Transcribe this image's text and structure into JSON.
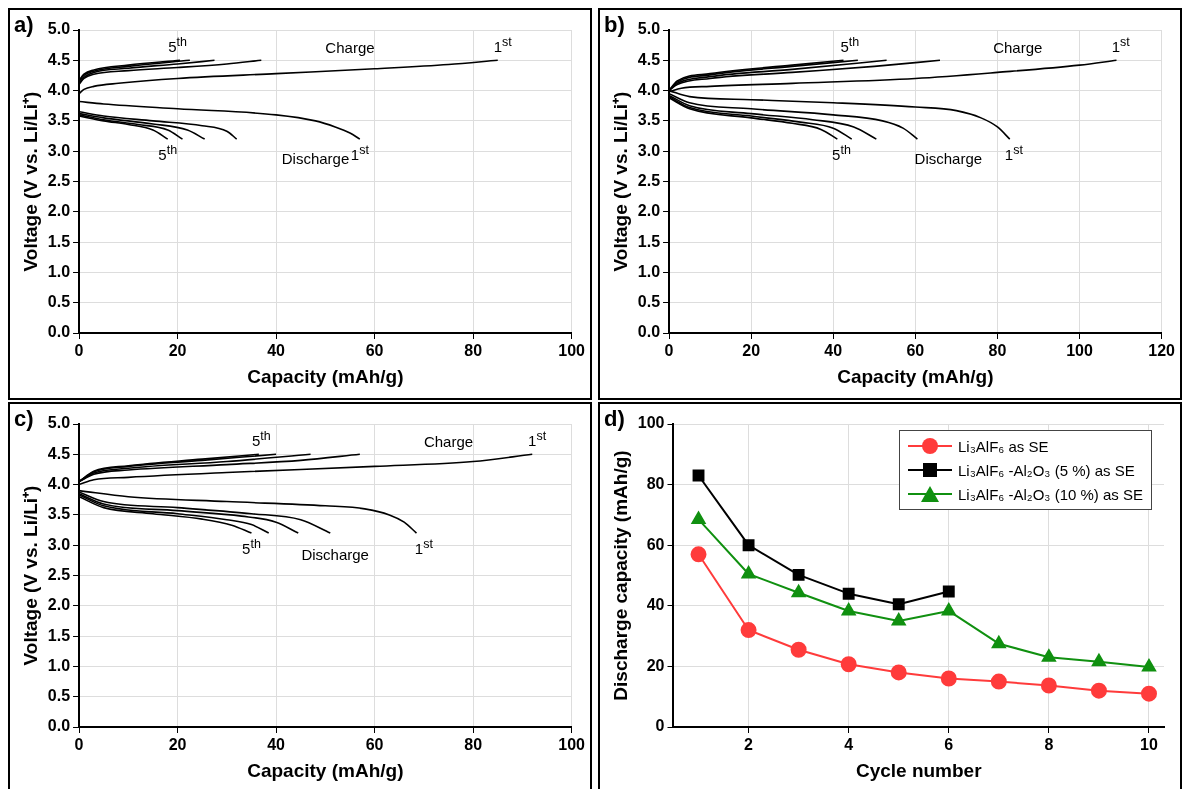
{
  "chart_data": [
    {
      "type": "line",
      "title": "a)",
      "xlabel": "Capacity (mAh/g)",
      "ylabel": "Voltage (V vs. Li/Li⁺)",
      "xlim": [
        0,
        100
      ],
      "xticks": [
        0,
        20,
        40,
        60,
        80,
        100
      ],
      "ylim": [
        0,
        5
      ],
      "yticks": [
        {
          "value": 0,
          "label": "0.0"
        },
        {
          "value": 0.5,
          "label": "0.5"
        },
        {
          "value": 1,
          "label": "1.0"
        },
        {
          "value": 1.5,
          "label": "1.5"
        },
        {
          "value": 2,
          "label": "2.0"
        },
        {
          "value": 2.5,
          "label": "2.5"
        },
        {
          "value": 3,
          "label": "3.0"
        },
        {
          "value": 3.5,
          "label": "3.5"
        },
        {
          "value": 4,
          "label": "4.0"
        },
        {
          "value": 4.5,
          "label": "4.5"
        },
        {
          "value": 5,
          "label": "5.0"
        }
      ],
      "grid": true,
      "legend": false,
      "marker": "none",
      "series": [
        {
          "color": "#000000",
          "x": [
            0,
            1,
            3,
            8,
            20,
            40,
            60,
            75,
            85
          ],
          "values": [
            3.95,
            4.02,
            4.07,
            4.12,
            4.2,
            4.28,
            4.36,
            4.43,
            4.5
          ]
        },
        {
          "color": "#000000",
          "x": [
            0,
            1,
            3,
            10,
            20,
            30,
            37
          ],
          "values": [
            4.1,
            4.2,
            4.27,
            4.33,
            4.38,
            4.44,
            4.5
          ]
        },
        {
          "color": "#000000",
          "x": [
            0,
            1,
            3,
            10,
            20,
            27.5
          ],
          "values": [
            4.12,
            4.22,
            4.3,
            4.37,
            4.44,
            4.5
          ]
        },
        {
          "color": "#000000",
          "x": [
            0,
            1,
            3,
            10,
            22.5
          ],
          "values": [
            4.15,
            4.25,
            4.32,
            4.4,
            4.5
          ]
        },
        {
          "color": "#000000",
          "x": [
            0,
            1,
            3,
            10,
            20.5
          ],
          "values": [
            4.17,
            4.27,
            4.34,
            4.42,
            4.5
          ]
        },
        {
          "color": "#000000",
          "x": [
            0,
            5,
            20,
            40,
            48,
            52,
            55,
            57
          ],
          "values": [
            3.82,
            3.78,
            3.7,
            3.6,
            3.5,
            3.4,
            3.3,
            3.2
          ]
        },
        {
          "color": "#000000",
          "x": [
            0,
            5,
            15,
            25,
            30,
            32
          ],
          "values": [
            3.65,
            3.58,
            3.5,
            3.42,
            3.33,
            3.2
          ]
        },
        {
          "color": "#000000",
          "x": [
            0,
            5,
            15,
            22,
            25.5
          ],
          "values": [
            3.62,
            3.55,
            3.45,
            3.35,
            3.2
          ]
        },
        {
          "color": "#000000",
          "x": [
            0,
            5,
            12,
            18,
            21
          ],
          "values": [
            3.6,
            3.52,
            3.44,
            3.35,
            3.2
          ]
        },
        {
          "color": "#000000",
          "x": [
            0,
            5,
            10,
            15,
            18
          ],
          "values": [
            3.58,
            3.5,
            3.44,
            3.35,
            3.2
          ]
        }
      ],
      "annotations": [
        "5$^{th}$",
        "Charge",
        "1$^{st}$",
        "5$^{th}$",
        "Discharge",
        "1$^{st}$"
      ]
    },
    {
      "type": "line",
      "title": "b)",
      "xlabel": "Capacity (mAh/g)",
      "ylabel": "Voltage (V vs. Li/Li⁺)",
      "xlim": [
        0,
        120
      ],
      "xticks": [
        0,
        20,
        40,
        60,
        80,
        100,
        120
      ],
      "ylim": [
        0,
        5
      ],
      "yticks": [
        {
          "value": 0,
          "label": "0.0"
        },
        {
          "value": 0.5,
          "label": "0.5"
        },
        {
          "value": 1,
          "label": "1.0"
        },
        {
          "value": 1.5,
          "label": "1.5"
        },
        {
          "value": 2,
          "label": "2.0"
        },
        {
          "value": 2.5,
          "label": "2.5"
        },
        {
          "value": 3,
          "label": "3.0"
        },
        {
          "value": 3.5,
          "label": "3.5"
        },
        {
          "value": 4,
          "label": "4.0"
        },
        {
          "value": 4.5,
          "label": "4.5"
        },
        {
          "value": 5,
          "label": "5.0"
        }
      ],
      "grid": true,
      "legend": false,
      "marker": "none",
      "series": [
        {
          "color": "#000000",
          "x": [
            0,
            3,
            10,
            30,
            60,
            80,
            100,
            109
          ],
          "values": [
            3.98,
            4.04,
            4.07,
            4.12,
            4.2,
            4.3,
            4.42,
            4.5
          ]
        },
        {
          "color": "#000000",
          "x": [
            0,
            2,
            10,
            30,
            50,
            66
          ],
          "values": [
            4.0,
            4.1,
            4.2,
            4.3,
            4.4,
            4.5
          ]
        },
        {
          "color": "#000000",
          "x": [
            0,
            2,
            10,
            30,
            53
          ],
          "values": [
            4.0,
            4.12,
            4.23,
            4.35,
            4.5
          ]
        },
        {
          "color": "#000000",
          "x": [
            0,
            2,
            10,
            30,
            46
          ],
          "values": [
            4.0,
            4.14,
            4.26,
            4.4,
            4.5
          ]
        },
        {
          "color": "#000000",
          "x": [
            0,
            2,
            10,
            30,
            42.5
          ],
          "values": [
            4.0,
            4.16,
            4.28,
            4.42,
            4.5
          ]
        },
        {
          "color": "#000000",
          "x": [
            0,
            5,
            20,
            40,
            60,
            70,
            76,
            80,
            83
          ],
          "values": [
            4.0,
            3.9,
            3.85,
            3.8,
            3.73,
            3.67,
            3.55,
            3.4,
            3.2
          ]
        },
        {
          "color": "#000000",
          "x": [
            0,
            5,
            20,
            40,
            52,
            57,
            60.5
          ],
          "values": [
            3.95,
            3.8,
            3.7,
            3.6,
            3.5,
            3.38,
            3.2
          ]
        },
        {
          "color": "#000000",
          "x": [
            0,
            5,
            20,
            35,
            45,
            50.5
          ],
          "values": [
            3.92,
            3.75,
            3.62,
            3.52,
            3.4,
            3.2
          ]
        },
        {
          "color": "#000000",
          "x": [
            0,
            5,
            20,
            32,
            40,
            44.5
          ],
          "values": [
            3.9,
            3.72,
            3.58,
            3.48,
            3.38,
            3.2
          ]
        },
        {
          "color": "#000000",
          "x": [
            0,
            5,
            20,
            30,
            37,
            41
          ],
          "values": [
            3.88,
            3.7,
            3.55,
            3.46,
            3.36,
            3.2
          ]
        }
      ],
      "annotations": [
        "5$^{th}$",
        "Charge",
        "1$^{st}$",
        "5$^{th}$",
        "Discharge",
        "1$^{st}$"
      ]
    },
    {
      "type": "line",
      "title": "c)",
      "xlabel": "Capacity (mAh/g)",
      "ylabel": "Voltage (V vs. Li/Li⁺)",
      "xlim": [
        0,
        100
      ],
      "xticks": [
        0,
        20,
        40,
        60,
        80,
        100
      ],
      "ylim": [
        0,
        5
      ],
      "yticks": [
        {
          "value": 0,
          "label": "0.0"
        },
        {
          "value": 0.5,
          "label": "0.5"
        },
        {
          "value": 1,
          "label": "1.0"
        },
        {
          "value": 1.5,
          "label": "1.5"
        },
        {
          "value": 2,
          "label": "2.0"
        },
        {
          "value": 2.5,
          "label": "2.5"
        },
        {
          "value": 3,
          "label": "3.0"
        },
        {
          "value": 3.5,
          "label": "3.5"
        },
        {
          "value": 4,
          "label": "4.0"
        },
        {
          "value": 4.5,
          "label": "4.5"
        },
        {
          "value": 5,
          "label": "5.0"
        }
      ],
      "grid": true,
      "legend": false,
      "marker": "none",
      "series": [
        {
          "color": "#000000",
          "x": [
            0,
            3,
            10,
            30,
            60,
            80,
            92
          ],
          "values": [
            4.0,
            4.08,
            4.12,
            4.2,
            4.3,
            4.38,
            4.5
          ]
        },
        {
          "color": "#000000",
          "x": [
            0,
            3,
            10,
            30,
            45,
            57
          ],
          "values": [
            4.05,
            4.17,
            4.24,
            4.33,
            4.4,
            4.5
          ]
        },
        {
          "color": "#000000",
          "x": [
            0,
            3,
            10,
            30,
            47
          ],
          "values": [
            4.05,
            4.19,
            4.27,
            4.38,
            4.5
          ]
        },
        {
          "color": "#000000",
          "x": [
            0,
            3,
            10,
            25,
            40
          ],
          "values": [
            4.05,
            4.21,
            4.3,
            4.4,
            4.5
          ]
        },
        {
          "color": "#000000",
          "x": [
            0,
            3,
            10,
            25,
            36.5
          ],
          "values": [
            4.05,
            4.22,
            4.31,
            4.42,
            4.5
          ]
        },
        {
          "color": "#000000",
          "x": [
            0,
            10,
            30,
            50,
            58,
            63,
            66,
            68.5
          ],
          "values": [
            3.9,
            3.8,
            3.72,
            3.65,
            3.6,
            3.5,
            3.38,
            3.2
          ]
        },
        {
          "color": "#000000",
          "x": [
            0,
            5,
            20,
            35,
            45,
            51
          ],
          "values": [
            3.88,
            3.72,
            3.62,
            3.52,
            3.42,
            3.2
          ]
        },
        {
          "color": "#000000",
          "x": [
            0,
            5,
            20,
            33,
            40,
            44.5
          ],
          "values": [
            3.85,
            3.68,
            3.57,
            3.48,
            3.38,
            3.2
          ]
        },
        {
          "color": "#000000",
          "x": [
            0,
            5,
            20,
            30,
            35,
            38.5
          ],
          "values": [
            3.83,
            3.65,
            3.52,
            3.42,
            3.34,
            3.2
          ]
        },
        {
          "color": "#000000",
          "x": [
            0,
            5,
            15,
            25,
            31,
            35
          ],
          "values": [
            3.8,
            3.62,
            3.52,
            3.43,
            3.33,
            3.2
          ]
        }
      ],
      "annotations": [
        "5$^{th}$",
        "Charge",
        "1$^{st}$",
        "5$^{th}$",
        "Discharge",
        "1$^{st}$"
      ]
    },
    {
      "type": "line",
      "title": "d)",
      "xlabel": "Cycle number",
      "ylabel": "Discharge capacity (mAh/g)",
      "xlim": [
        0.5,
        10.3
      ],
      "xticks": [
        2,
        4,
        6,
        8,
        10
      ],
      "ylim": [
        0,
        100
      ],
      "yticks": [
        0,
        20,
        40,
        60,
        80,
        100
      ],
      "grid": true,
      "legend": "top right",
      "x": [
        1,
        2,
        3,
        4,
        5,
        6,
        7,
        8,
        9,
        10
      ],
      "series": [
        {
          "name": "Li₃AlF₆ as SE",
          "color": "#ff3b3b",
          "marker": "circle",
          "values": [
            57,
            32,
            25.5,
            20.7,
            18,
            16,
            15,
            13.7,
            12,
            11
          ]
        },
        {
          "name": "Li₃AlF₆ -Al₂O₃ (5 %) as SE",
          "color": "#000000",
          "marker": "square",
          "values": [
            83,
            60,
            50.2,
            44,
            40.5,
            44.7,
            null,
            null,
            null,
            null
          ]
        },
        {
          "name": "Li₃AlF₆ -Al₂O₃ (10 %) as SE",
          "color": "#109010",
          "marker": "triangle",
          "values": [
            68.5,
            50.5,
            44.3,
            38.3,
            35,
            38.3,
            27.5,
            23,
            21.5,
            19.8
          ]
        }
      ]
    }
  ]
}
